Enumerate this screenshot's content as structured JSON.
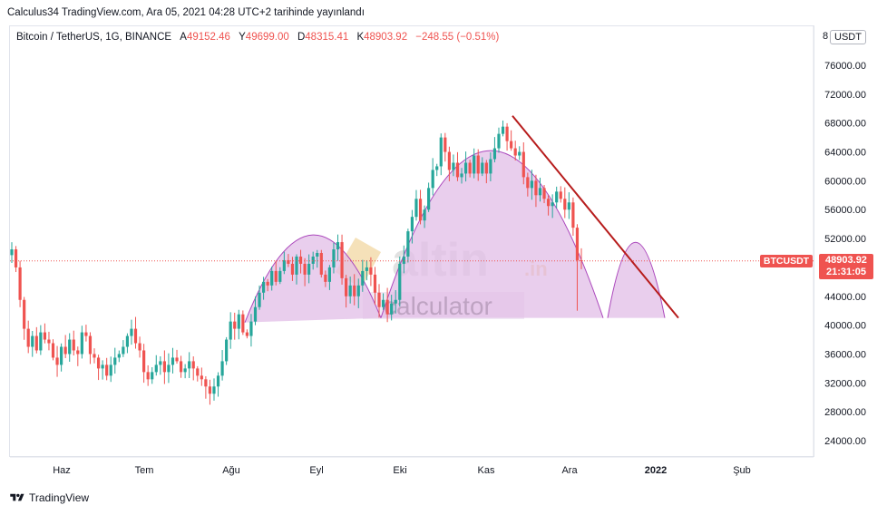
{
  "header": {
    "publish_line": "Calculus34 TradingView.com, Ara 05, 2021 04:28 UTC+2 tarihinde yayınlandı"
  },
  "legend": {
    "symbol": "Bitcoin / TetherUS, 1G, BINANCE",
    "open_label": "A",
    "open": "49152.46",
    "high_label": "Y",
    "high": "49699.00",
    "low_label": "D",
    "low": "48315.41",
    "close_label": "K",
    "close": "48903.92",
    "change": "−248.55 (−0.51%)"
  },
  "currency": "USDT",
  "price_axis_top_partial": "8",
  "ticker_badge": "BTCUSDT",
  "last_price": "48903.92",
  "countdown": "21:31:05",
  "watermark": {
    "word1": "altin",
    "suffix": ".in",
    "word2": "calculator"
  },
  "footer": {
    "brand": "TradingView"
  },
  "colors": {
    "up": "#26a69a",
    "down": "#ef5350",
    "pattern_fill": "#e1bee7",
    "pattern_stroke": "#ab47bc",
    "trendline": "#b71c1c"
  },
  "chart_data": {
    "type": "candlestick",
    "title": "",
    "xlabel": "",
    "ylabel": "",
    "x_ticks": [
      "Haz",
      "Tem",
      "Ağu",
      "Eyl",
      "Eki",
      "Kas",
      "Ara",
      "2022",
      "Şub"
    ],
    "y_ticks": [
      24000,
      28000,
      32000,
      36000,
      40000,
      44000,
      48000,
      52000,
      56000,
      60000,
      64000,
      68000,
      72000,
      76000
    ],
    "ylim": [
      21000,
      81000
    ],
    "grid": false,
    "closes_approx": [
      50500,
      48000,
      43500,
      39500,
      37000,
      38500,
      36500,
      39000,
      38000,
      37500,
      35500,
      34500,
      37000,
      36000,
      38000,
      36500,
      36000,
      39000,
      38500,
      36000,
      35500,
      34000,
      34500,
      33000,
      34500,
      35500,
      36000,
      37000,
      38500,
      39500,
      37500,
      36500,
      33500,
      32500,
      33500,
      34500,
      35000,
      33500,
      34500,
      35500,
      35000,
      33500,
      34000,
      35000,
      34000,
      33000,
      32500,
      31500,
      30500,
      31500,
      33000,
      35000,
      38000,
      40500,
      39500,
      41500,
      39000,
      38500,
      40500,
      42500,
      44500,
      46000,
      45500,
      47500,
      46000,
      47500,
      49000,
      48500,
      47000,
      49500,
      48500,
      47000,
      48500,
      49500,
      50000,
      47000,
      46000,
      48000,
      50500,
      51500,
      46500,
      44000,
      45500,
      44000,
      45500,
      47500,
      48000,
      47000,
      44500,
      42500,
      43500,
      41500,
      43000,
      43500,
      48500,
      49500,
      53000,
      55000,
      57500,
      54500,
      56000,
      59000,
      61500,
      62000,
      66000,
      64000,
      61500,
      62500,
      60500,
      61000,
      62500,
      61000,
      63500,
      61000,
      62500,
      61000,
      63000,
      64500,
      66500,
      67500,
      65500,
      64500,
      63500,
      64000,
      60500,
      59000,
      60000,
      58000,
      59000,
      57500,
      56500,
      57000,
      58500,
      57500,
      56000,
      57000,
      53500,
      49000,
      48903.92
    ],
    "pattern": {
      "name": "",
      "neckline_approx": 41000,
      "left_shoulder_peak_approx": 53000,
      "head_peak_approx": 68500,
      "right_shoulder_peak_approx": 47500
    },
    "trendline_approx": {
      "from": 69000,
      "to": 41000
    }
  }
}
